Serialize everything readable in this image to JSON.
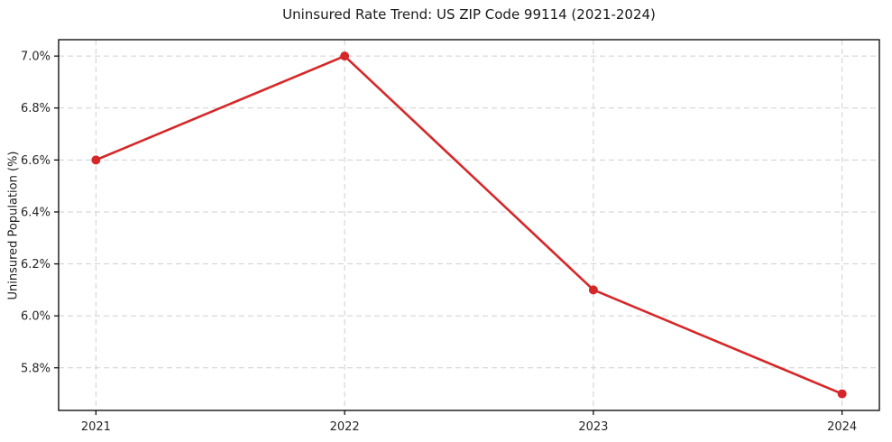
{
  "chart_data": {
    "type": "line",
    "title": "Uninsured Rate Trend: US ZIP Code 99114 (2021-2024)",
    "xlabel": "",
    "ylabel": "Uninsured Population (%)",
    "categories": [
      "2021",
      "2022",
      "2023",
      "2024"
    ],
    "series": [
      {
        "name": "Uninsured Population (%)",
        "values": [
          6.6,
          7.0,
          6.1,
          5.7
        ]
      }
    ],
    "point_labels": [
      "6.6%",
      "7.0%",
      "6.1%",
      "5.7%"
    ],
    "yticks": [
      5.8,
      6.0,
      6.2,
      6.4,
      6.6,
      6.8,
      7.0
    ],
    "ytick_labels": [
      "5.8%",
      "6.0%",
      "6.2%",
      "6.4%",
      "6.6%",
      "6.8%",
      "7.0%"
    ],
    "ylim": [
      5.636,
      7.063
    ],
    "xlim": [
      -0.15,
      3.15
    ],
    "grid": true,
    "grid_style": "dashed",
    "legend": "none",
    "colors": {
      "line": "#d62728",
      "marker": "#d62728",
      "grid": "#cfcfcf",
      "spine": "#000000",
      "background": "#ffffff",
      "text": "#262626"
    }
  }
}
